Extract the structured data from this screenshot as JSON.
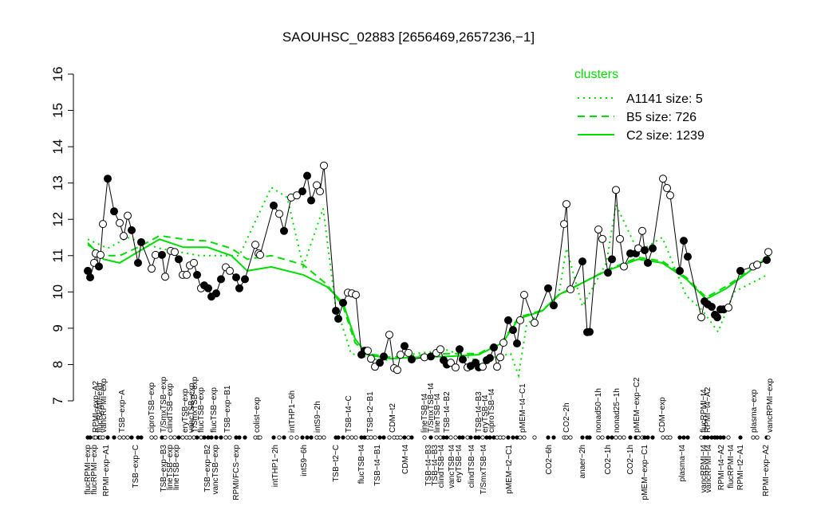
{
  "chart_data": {
    "type": "line",
    "title": "SAOUHSC_02883 [2656469,2657236,−1]",
    "ylim": [
      7,
      16
    ],
    "yticks": [
      7,
      8,
      9,
      10,
      11,
      12,
      13,
      14,
      15,
      16
    ],
    "xlim": [
      0,
      870
    ],
    "legend_title": "clusters",
    "legend_position": "top-right",
    "series": [
      {
        "name": "A1141 size: 5",
        "color": "#00dd00",
        "style": "dotted",
        "x": [
          5,
          30,
          55,
          95,
          145,
          195,
          235,
          255,
          275,
          300,
          315,
          335,
          375,
          415,
          455,
          495,
          535,
          545,
          555,
          595,
          605,
          625,
          655,
          667,
          695,
          725,
          755,
          775,
          795,
          815,
          855
        ],
        "values": [
          11.45,
          11.2,
          11.5,
          11.2,
          11.0,
          11.0,
          12.88,
          12.6,
          10.7,
          12.3,
          9.7,
          8.3,
          8.1,
          8.3,
          8.4,
          8.1,
          8.3,
          7.7,
          9.1,
          9.9,
          11.2,
          9.6,
          10.8,
          12.4,
          11.1,
          11.5,
          9.9,
          9.5,
          8.9,
          10.0,
          10.45
        ]
      },
      {
        "name": "B5 size: 726",
        "color": "#00dd00",
        "style": "dashed",
        "x": [
          5,
          25,
          45,
          70,
          95,
          125,
          155,
          185,
          205,
          235,
          275,
          305,
          325,
          340,
          355,
          385,
          415,
          455,
          495,
          525,
          545,
          575,
          595,
          625,
          655,
          695,
          725,
          755,
          780,
          805,
          835,
          860
        ],
        "values": [
          11.3,
          11.0,
          11.0,
          11.25,
          11.55,
          11.45,
          11.4,
          11.2,
          10.9,
          11.0,
          10.75,
          10.2,
          9.6,
          8.6,
          8.3,
          8.2,
          8.25,
          8.3,
          8.3,
          8.65,
          9.3,
          9.5,
          9.9,
          10.25,
          10.6,
          10.95,
          10.85,
          10.4,
          9.85,
          10.15,
          10.6,
          11.0
        ]
      },
      {
        "name": "C2 size: 1239",
        "color": "#00dd00",
        "style": "solid",
        "x": [
          5,
          25,
          45,
          70,
          95,
          125,
          155,
          185,
          205,
          235,
          275,
          305,
          325,
          340,
          355,
          385,
          415,
          455,
          495,
          525,
          545,
          575,
          595,
          625,
          655,
          695,
          725,
          755,
          780,
          805,
          835,
          860
        ],
        "values": [
          11.35,
          10.9,
          10.8,
          11.13,
          11.45,
          11.23,
          11.23,
          11.0,
          10.58,
          10.69,
          10.47,
          10.14,
          9.7,
          8.71,
          8.27,
          8.16,
          8.2,
          8.22,
          8.27,
          8.6,
          9.26,
          9.48,
          9.92,
          10.25,
          10.58,
          10.9,
          10.8,
          10.36,
          9.8,
          10.09,
          10.58,
          11.02
        ]
      }
    ],
    "points": {
      "x": [
        5,
        8,
        13,
        15,
        19,
        21,
        24,
        30,
        38,
        45,
        50,
        55,
        60,
        68,
        72,
        85,
        90,
        98,
        102,
        109,
        114,
        119,
        124,
        129,
        133,
        138,
        142,
        147,
        151,
        156,
        160,
        166,
        172,
        178,
        183,
        191,
        195,
        202,
        215,
        219,
        221,
        238,
        245,
        251,
        260,
        267,
        274,
        280,
        285,
        292,
        296,
        301,
        316,
        319,
        325,
        331,
        336,
        341,
        348,
        352,
        356,
        360,
        365,
        371,
        376,
        383,
        389,
        393,
        397,
        402,
        407,
        411,
        427,
        435,
        442,
        447,
        451,
        455,
        460,
        466,
        471,
        475,
        481,
        485,
        491,
        495,
        500,
        505,
        509,
        514,
        518,
        522,
        526,
        532,
        538,
        543,
        547,
        552,
        565,
        582,
        589,
        602,
        605,
        610,
        625,
        631,
        634,
        645,
        650,
        657,
        662,
        667,
        672,
        677,
        685,
        692,
        695,
        700,
        703,
        707,
        713,
        726,
        731,
        735,
        747,
        752,
        757,
        774,
        778,
        782,
        787,
        791,
        794,
        798,
        802,
        808,
        823,
        839,
        844,
        856,
        858
      ],
      "y": [
        10.58,
        10.4,
        10.8,
        11.06,
        10.7,
        11.02,
        11.87,
        13.12,
        12.22,
        11.9,
        11.54,
        12.1,
        11.7,
        10.8,
        11.37,
        10.64,
        11.02,
        11.02,
        10.42,
        11.13,
        11.1,
        10.9,
        10.47,
        10.47,
        10.73,
        10.8,
        10.47,
        10.1,
        10.18,
        10.1,
        9.87,
        9.96,
        10.35,
        10.68,
        10.58,
        10.4,
        10.1,
        10.35,
        11.3,
        11.06,
        11.02,
        12.38,
        12.15,
        11.68,
        12.6,
        12.66,
        12.77,
        13.2,
        12.52,
        12.94,
        12.77,
        13.48,
        9.48,
        9.26,
        9.7,
        9.98,
        9.96,
        9.92,
        8.27,
        8.38,
        8.38,
        8.16,
        7.94,
        8.05,
        8.22,
        8.82,
        7.9,
        7.85,
        8.27,
        8.51,
        8.32,
        8.14,
        8.2,
        8.22,
        8.32,
        8.42,
        8.12,
        8.0,
        8.05,
        7.92,
        8.42,
        8.14,
        7.92,
        7.96,
        8.05,
        7.92,
        7.94,
        8.12,
        8.18,
        8.47,
        7.94,
        8.2,
        8.6,
        9.22,
        8.95,
        8.58,
        9.22,
        9.92,
        9.15,
        10.1,
        9.63,
        11.87,
        12.42,
        10.07,
        10.84,
        8.89,
        8.9,
        11.72,
        11.46,
        10.53,
        10.9,
        12.81,
        11.46,
        10.7,
        11.06,
        11.06,
        11.2,
        11.68,
        11.15,
        10.8,
        11.2,
        13.12,
        12.86,
        12.66,
        10.58,
        11.41,
        10.97,
        9.3,
        9.74,
        9.66,
        9.59,
        9.37,
        9.3,
        9.52,
        9.52,
        9.57,
        10.58,
        10.7,
        10.75,
        10.88,
        11.1
      ],
      "filled": [
        true,
        true,
        false,
        false,
        true,
        false,
        false,
        true,
        true,
        false,
        false,
        false,
        true,
        true,
        true,
        false,
        false,
        true,
        false,
        false,
        false,
        true,
        false,
        false,
        false,
        false,
        true,
        false,
        true,
        true,
        true,
        true,
        true,
        false,
        false,
        true,
        true,
        true,
        false,
        false,
        false,
        true,
        false,
        true,
        false,
        false,
        true,
        true,
        true,
        false,
        false,
        false,
        true,
        true,
        true,
        false,
        false,
        false,
        true,
        true,
        false,
        false,
        false,
        true,
        true,
        false,
        false,
        false,
        false,
        true,
        false,
        true,
        false,
        true,
        false,
        false,
        true,
        true,
        false,
        false,
        true,
        true,
        false,
        true,
        true,
        true,
        false,
        true,
        true,
        true,
        false,
        false,
        false,
        true,
        true,
        true,
        false,
        false,
        false,
        true,
        true,
        false,
        false,
        false,
        true,
        true,
        true,
        false,
        false,
        true,
        true,
        false,
        false,
        false,
        true,
        true,
        false,
        false,
        true,
        true,
        true,
        false,
        false,
        false,
        true,
        true,
        true,
        false,
        true,
        true,
        true,
        true,
        true,
        true,
        true,
        false,
        true,
        false,
        false,
        true,
        false
      ]
    },
    "top_labels": {
      "x": [
        15,
        20,
        25,
        48,
        85,
        100,
        108,
        127,
        135,
        139,
        147,
        163,
        180,
        217,
        261,
        293,
        332,
        359,
        387,
        427,
        435,
        443,
        455,
        495,
        503,
        511,
        550,
        605,
        645,
        668,
        693,
        725,
        777,
        782,
        840,
        860
      ],
      "labels": [
        "RPMI−exp−A2",
        "flucRPMI−exp",
        "vancRPMI−exp",
        "TSB−exp−A",
        "ciproTSB−exp",
        "T/SmxTSB−exp",
        "clindTSB−exp",
        "eryTSB−exp",
        "vancTSB−exp",
        "T/SmxTSB−exp",
        "flucTSB−exp",
        "flucTSB−exp",
        "TSB−exp−B1",
        "colist−exp",
        "intTHP1−6h",
        "intS9−2h",
        "TSB−t4−C",
        "TSB−t2−B1",
        "CDM−t2",
        "lineTSB−t4",
        "T/SmxTSB−t4",
        "lineTSB−t4",
        "TSB−t4−B2",
        "TSB−t4−B3",
        "eryTSB−t4",
        "ciproTSB−t4",
        "pMEM−t4−C1",
        "CO2−2h",
        "nonad50−1h",
        "nonad25−1h",
        "pMEM−exp−C2",
        "CDM−exp",
        "flucRPMI−t4",
        "RPMI−t4−A2",
        "plasma−exp",
        "vancRPMI−exp"
      ]
    },
    "bottom_labels": {
      "x": [
        5,
        13,
        28,
        65,
        100,
        108,
        116,
        155,
        165,
        191,
        240,
        276,
        316,
        348,
        368,
        403,
        432,
        440,
        448,
        461,
        470,
        486,
        501,
        533,
        583,
        625,
        657,
        685,
        703,
        750,
        777,
        783,
        799,
        811,
        823,
        855
      ],
      "labels": [
        "flucRPMI−exp",
        "flucRPMI−exp",
        "RPMI−exp−A1",
        "TSB−exp−C",
        "TSB−exp−B3",
        "lineTSB−exp",
        "lineTSB−exp",
        "TSB−exp−B2",
        "vancTSB−exp",
        "RPMI/FCS−exp",
        "intTHP1−2h",
        "intS9−6h",
        "TSB−t2−C",
        "flucTSB−t4",
        "TSB−t4−B1",
        "CDM−t4",
        "TSB−t4−B3",
        "TSB−t4−B3",
        "clindTSB−t4",
        "vancTSB−t4",
        "eryTSB−t4",
        "clindTSB−t4",
        "T/SmxTSB−t4",
        "pMEM−t2−C1",
        "CO2−6h",
        "anaer−2h",
        "CO2−1h",
        "CO2−1h",
        "pMEM−exp−C1",
        "plasma−t4",
        "vancRPMI−t4",
        "vancRPMI−t4",
        "RPMI−t4−A2",
        "flucRPMI−t4",
        "RPMI−t2−A1",
        "RPMI−exp−A2"
      ]
    }
  }
}
